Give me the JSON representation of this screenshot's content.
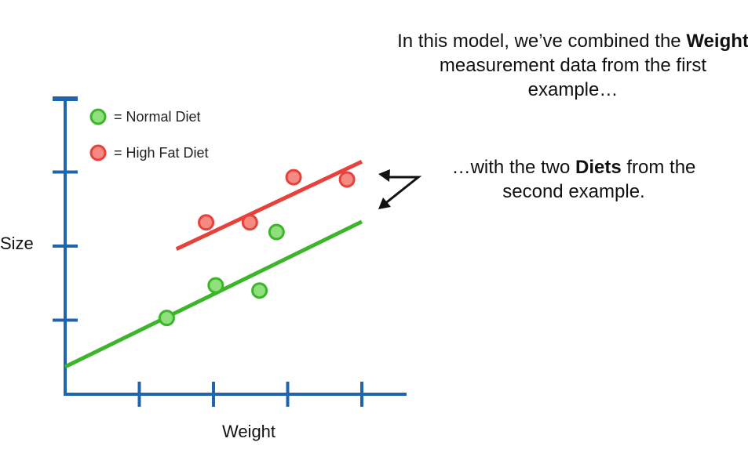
{
  "captions": {
    "first": {
      "before": "In this model, we’ve combined the ",
      "bold": "Weight",
      "after": " measurement data from the first example…"
    },
    "second": {
      "before": "…with the two ",
      "bold": "Diets",
      "after": " from the second example."
    }
  },
  "chart_data": {
    "type": "scatter",
    "title": "",
    "xlabel": "Weight",
    "ylabel": "Size",
    "xlim": [
      0,
      4.6
    ],
    "ylim": [
      0,
      4.1
    ],
    "x_ticks": [
      1,
      2,
      3,
      4
    ],
    "y_ticks": [
      1,
      2,
      3,
      4
    ],
    "tick_labels_shown": false,
    "grid": false,
    "legend_position": "top-left",
    "series": [
      {
        "name": "Normal Diet",
        "legend_label": "= Normal Diet",
        "color": "#3cb52b",
        "points": [
          [
            1.37,
            1.03
          ],
          [
            2.03,
            1.47
          ],
          [
            2.62,
            1.4
          ],
          [
            2.85,
            2.19
          ]
        ],
        "fit_line": {
          "x_start": 0.0,
          "y_start": 0.37,
          "x_end": 4.0,
          "y_end": 2.33
        }
      },
      {
        "name": "High Fat Diet",
        "legend_label": "= High Fat Diet",
        "color": "#e8403a",
        "points": [
          [
            1.9,
            2.32
          ],
          [
            2.49,
            2.32
          ],
          [
            3.08,
            2.93
          ],
          [
            3.8,
            2.9
          ]
        ],
        "fit_line": {
          "x_start": 1.5,
          "y_start": 1.96,
          "x_end": 4.0,
          "y_end": 3.14
        }
      }
    ],
    "annotations": [
      {
        "type": "double-arrow",
        "color": "#111111",
        "points_to": "fit lines"
      }
    ]
  }
}
